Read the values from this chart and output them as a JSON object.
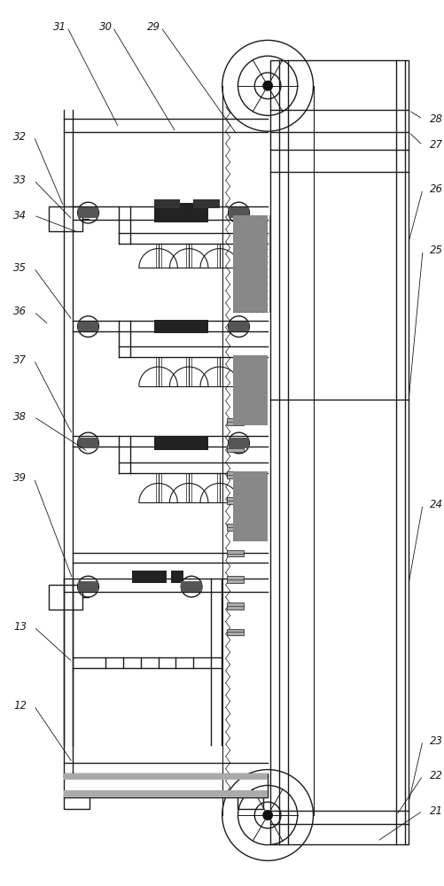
{
  "bg_color": "#ffffff",
  "line_color": "#1a1a1a",
  "fig_width": 5.02,
  "fig_height": 10.0,
  "lw_main": 1.0,
  "lw_thin": 0.5,
  "lw_label": 0.6
}
